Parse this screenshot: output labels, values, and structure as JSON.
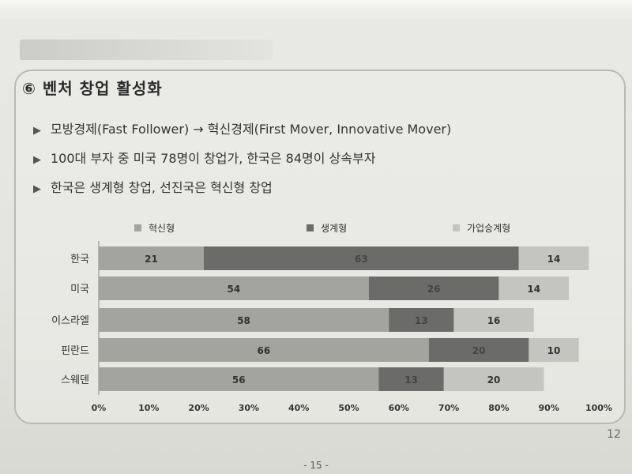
{
  "slide": {
    "heading": "⑥ 벤처 창업 활성화",
    "bullets": [
      "모방경제(Fast Follower) → 혁신경제(First Mover, Innovative Mover)",
      "100대 부자 중 미국 78명이 창업가, 한국은 84명이 상속부자",
      "한국은 생계형 창업, 선진국은 혁신형 창업"
    ],
    "bullet_icon": "triangle-right-icon",
    "page_number": "12",
    "footer_number": "- 15 -"
  },
  "chart_data": {
    "type": "bar",
    "orientation": "horizontal",
    "stacked": true,
    "categories": [
      "한국",
      "미국",
      "이스라엘",
      "핀란드",
      "스웨덴"
    ],
    "series": [
      {
        "name": "혁신형",
        "values": [
          21,
          54,
          58,
          66,
          56
        ],
        "color": "#a3a3a0"
      },
      {
        "name": "생계형",
        "values": [
          63,
          26,
          13,
          20,
          13
        ],
        "color": "#6b6b69"
      },
      {
        "name": "가업승계형",
        "values": [
          14,
          14,
          16,
          10,
          20
        ],
        "color": "#c4c4c1"
      }
    ],
    "xlim": [
      0,
      100
    ],
    "x_ticks": [
      "0%",
      "10%",
      "20%",
      "30%",
      "40%",
      "50%",
      "60%",
      "70%",
      "80%",
      "90%",
      "100%"
    ],
    "legend_position": "top",
    "title": "",
    "xlabel": "",
    "ylabel": ""
  }
}
